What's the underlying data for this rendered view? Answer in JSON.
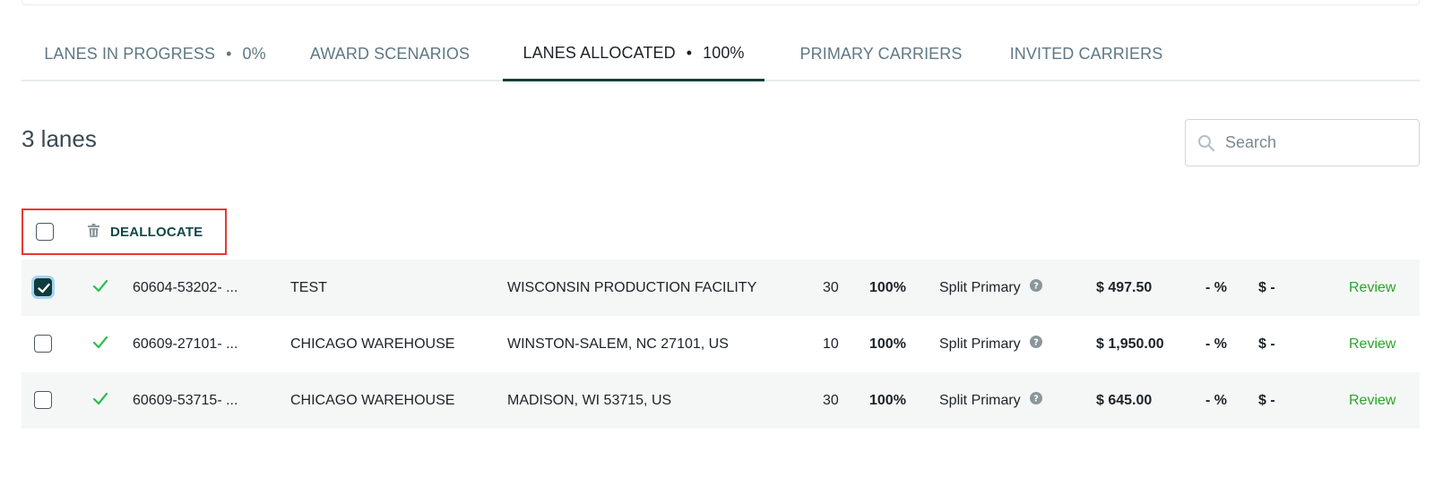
{
  "tabs": [
    {
      "label": "LANES IN PROGRESS",
      "value": "0%"
    },
    {
      "label": "AWARD SCENARIOS"
    },
    {
      "label": "LANES ALLOCATED",
      "value": "100%",
      "active": true
    },
    {
      "label": "PRIMARY CARRIERS"
    },
    {
      "label": "INVITED CARRIERS"
    }
  ],
  "tab_separator": "•",
  "lane_count": "3 lanes",
  "search": {
    "placeholder": "Search",
    "value": "",
    "icon": "search-icon"
  },
  "actions": {
    "deallocate_label": "DEALLOCATE",
    "icon": "trash-icon"
  },
  "rows": [
    {
      "selected": true,
      "status_icon": "check-icon",
      "lane_id": "60604-53202- ...",
      "origin": "TEST",
      "destination": "WISCONSIN PRODUCTION FACILITY",
      "volume": "30",
      "allocation": "100%",
      "award_type": "Split Primary",
      "rate": "$ 497.50",
      "diff_pct": "- %",
      "diff_amount": "$ -",
      "action": "Review"
    },
    {
      "selected": false,
      "status_icon": "check-icon",
      "lane_id": "60609-27101- ...",
      "origin": "CHICAGO WAREHOUSE",
      "destination": "WINSTON-SALEM, NC 27101, US",
      "volume": "10",
      "allocation": "100%",
      "award_type": "Split Primary",
      "rate": "$ 1,950.00",
      "diff_pct": "- %",
      "diff_amount": "$ -",
      "action": "Review"
    },
    {
      "selected": false,
      "status_icon": "check-icon",
      "lane_id": "60609-53715- ...",
      "origin": "CHICAGO WAREHOUSE",
      "destination": "MADISON, WI 53715, US",
      "volume": "30",
      "allocation": "100%",
      "award_type": "Split Primary",
      "rate": "$ 645.00",
      "diff_pct": "- %",
      "diff_amount": "$ -",
      "action": "Review"
    }
  ],
  "colors": {
    "accent": "#123f3c",
    "review": "#2aa52a",
    "check": "#2bbf4a",
    "highlight_box": "#e53935"
  }
}
